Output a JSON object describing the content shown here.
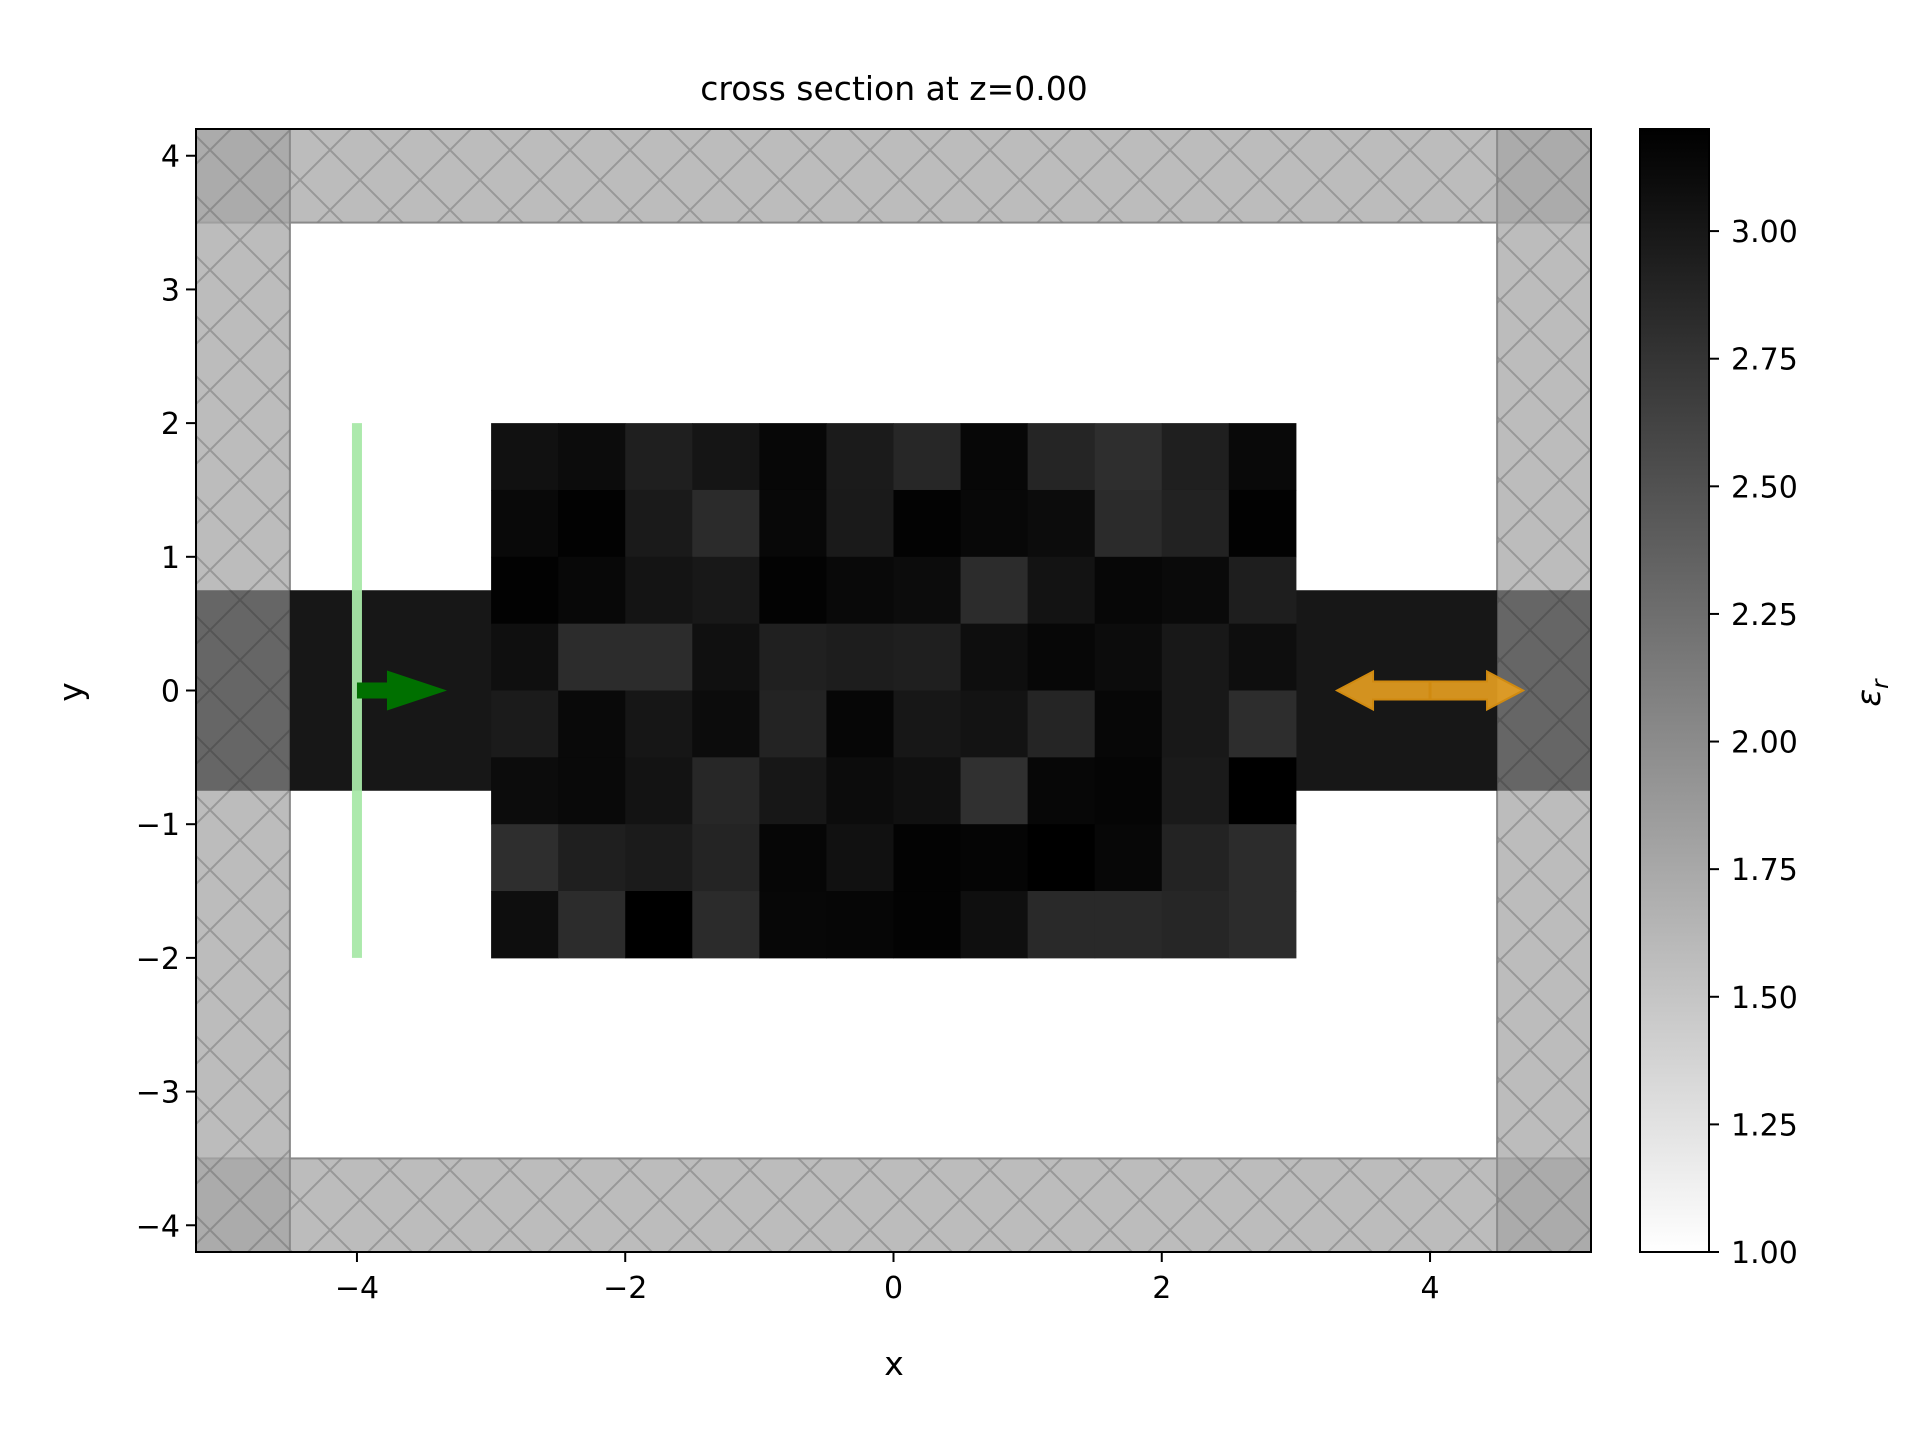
{
  "chart_data": {
    "type": "heatmap",
    "title": "cross section at z=0.00",
    "xlabel": "x",
    "ylabel": "y",
    "xlim": [
      -5.2,
      5.2
    ],
    "ylim": [
      -4.2,
      4.2
    ],
    "x_ticks": [
      {
        "value": -4,
        "label": "−4"
      },
      {
        "value": -2,
        "label": "−2"
      },
      {
        "value": 0,
        "label": "0"
      },
      {
        "value": 2,
        "label": "2"
      },
      {
        "value": 4,
        "label": "4"
      }
    ],
    "y_ticks": [
      {
        "value": 4,
        "label": "4"
      },
      {
        "value": 3,
        "label": "3"
      },
      {
        "value": 2,
        "label": "2"
      },
      {
        "value": 1,
        "label": "1"
      },
      {
        "value": 0,
        "label": "0"
      },
      {
        "value": -1,
        "label": "−1"
      },
      {
        "value": -2,
        "label": "−2"
      },
      {
        "value": -3,
        "label": "−3"
      },
      {
        "value": -4,
        "label": "−4"
      }
    ],
    "colorbar": {
      "label": "ε",
      "label_sub": "r",
      "range": [
        1.0,
        3.2
      ],
      "ticks": [
        {
          "value": 3.0,
          "label": "3.00"
        },
        {
          "value": 2.75,
          "label": "2.75"
        },
        {
          "value": 2.5,
          "label": "2.50"
        },
        {
          "value": 2.25,
          "label": "2.25"
        },
        {
          "value": 2.0,
          "label": "2.00"
        },
        {
          "value": 1.75,
          "label": "1.75"
        },
        {
          "value": 1.5,
          "label": "1.50"
        },
        {
          "value": 1.25,
          "label": "1.25"
        },
        {
          "value": 1.0,
          "label": "1.00"
        }
      ]
    },
    "waveguide": {
      "x_range": [
        -4.5,
        4.5
      ],
      "y_range": [
        -0.75,
        0.75
      ],
      "eps": 3.0
    },
    "design_region": {
      "x_range": [
        -3,
        3
      ],
      "y_range": [
        -2,
        2
      ],
      "rows_top_to_bottom": [
        [
          3.05,
          3.1,
          2.93,
          3.02,
          3.14,
          2.97,
          2.86,
          3.14,
          2.88,
          2.8,
          2.93,
          3.12
        ],
        [
          3.12,
          3.18,
          2.98,
          2.83,
          3.13,
          2.98,
          3.17,
          3.13,
          3.1,
          2.83,
          2.91,
          3.18
        ],
        [
          3.18,
          3.13,
          3.03,
          2.99,
          3.17,
          3.12,
          3.1,
          2.82,
          3.04,
          3.14,
          3.11,
          2.94
        ],
        [
          3.07,
          2.82,
          2.82,
          3.06,
          2.92,
          2.95,
          2.93,
          3.08,
          3.14,
          3.1,
          2.99,
          3.08
        ],
        [
          2.97,
          3.12,
          3.01,
          3.1,
          2.9,
          3.15,
          3.0,
          3.04,
          2.88,
          3.14,
          2.99,
          2.81
        ],
        [
          3.1,
          3.12,
          3.04,
          2.86,
          3.0,
          3.1,
          3.06,
          2.79,
          3.14,
          3.16,
          2.98,
          3.2
        ],
        [
          2.8,
          2.93,
          2.97,
          2.89,
          3.15,
          3.05,
          3.17,
          3.16,
          3.2,
          3.14,
          2.9,
          2.82
        ],
        [
          3.08,
          2.82,
          3.22,
          2.83,
          3.14,
          3.15,
          3.17,
          3.07,
          2.85,
          2.85,
          2.87,
          2.82
        ]
      ]
    },
    "pml": {
      "thickness": 0.7,
      "color": "#a6a6a6"
    },
    "source": {
      "x": -4,
      "y_range": [
        -2,
        2
      ],
      "color": "#a8e8a8",
      "arrow_color": "#007000",
      "direction": "+x"
    },
    "monitor": {
      "x": 4,
      "y": 0,
      "color": "#e8a020"
    }
  }
}
